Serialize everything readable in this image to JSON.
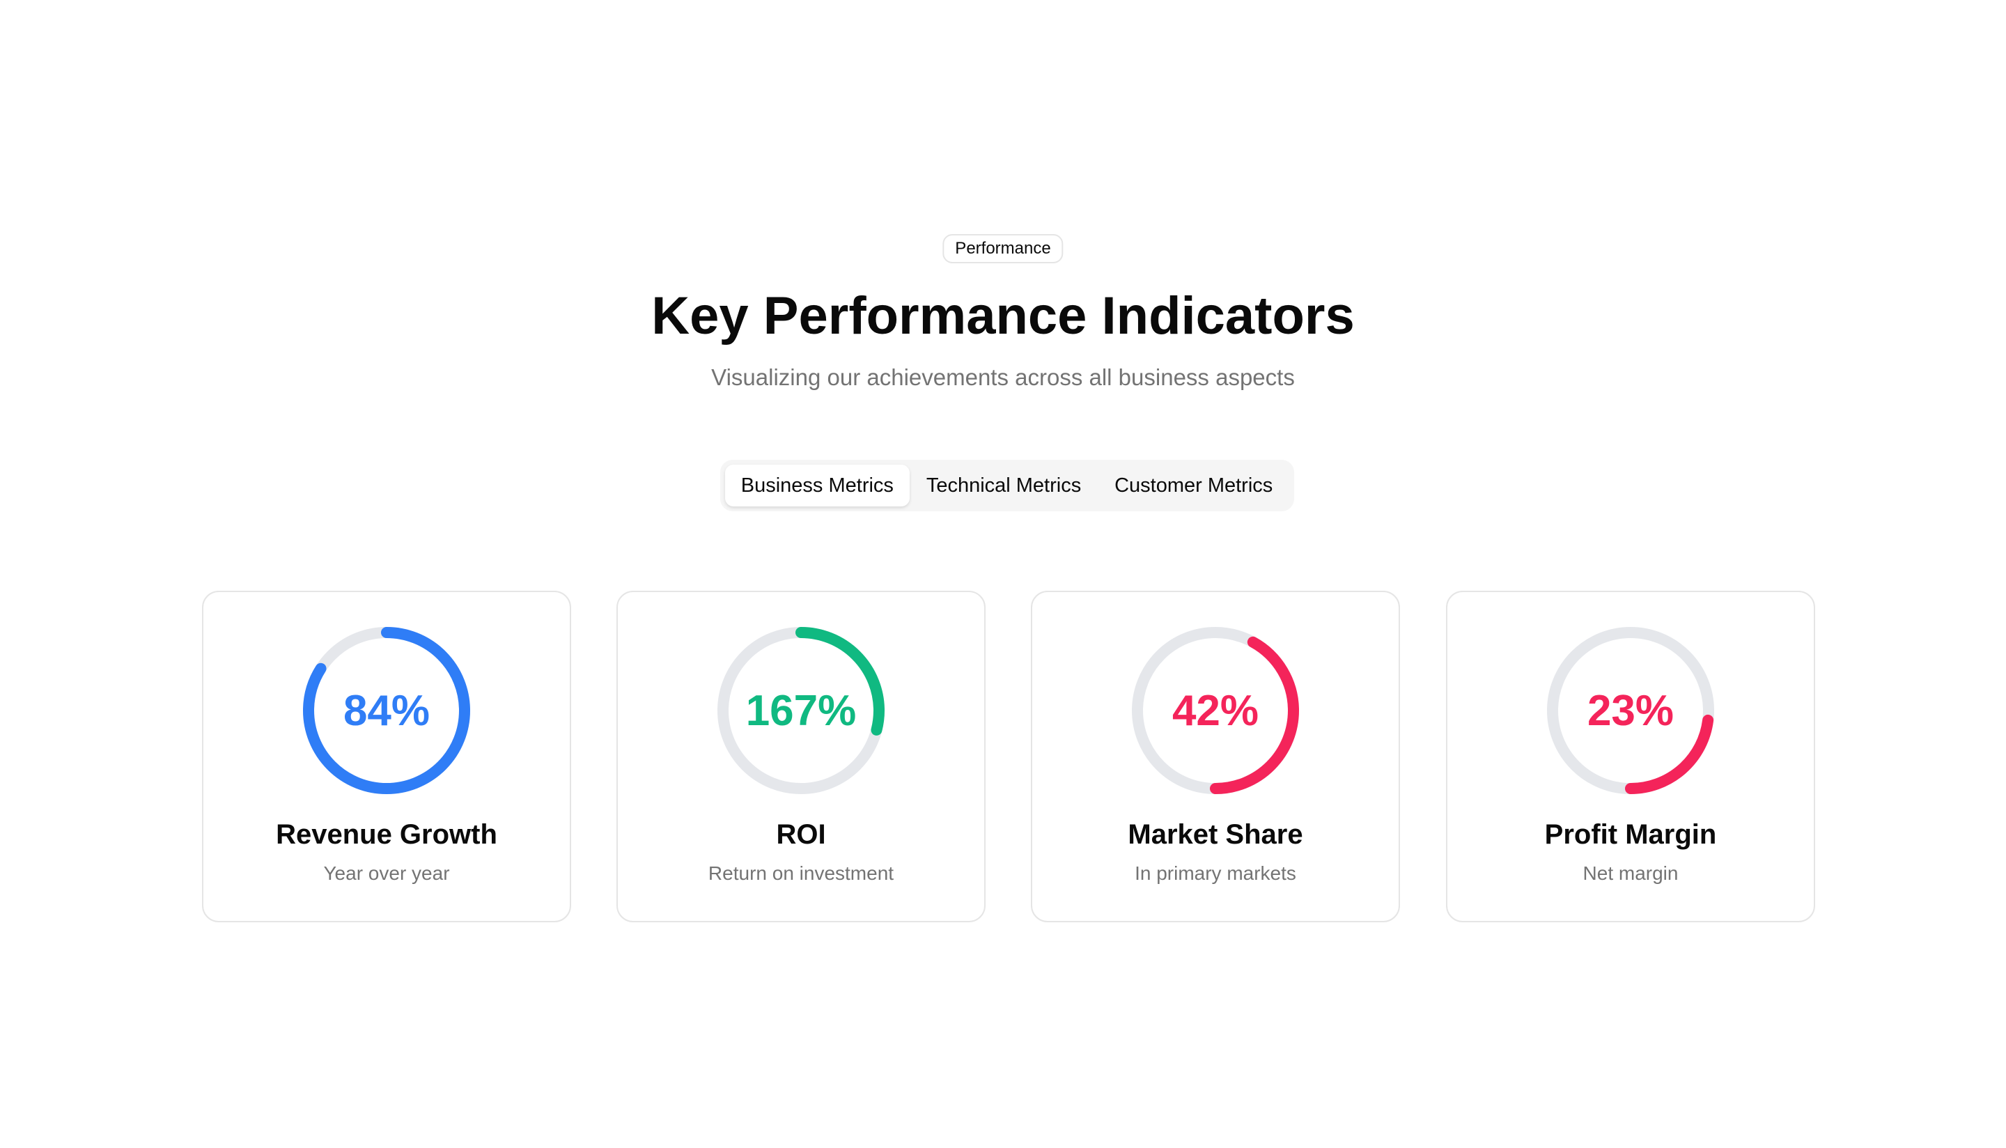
{
  "badge": "Performance",
  "title": "Key Performance Indicators",
  "subtitle": "Visualizing our achievements across all business aspects",
  "tabs": [
    {
      "label": "Business Metrics",
      "active": true
    },
    {
      "label": "Technical Metrics",
      "active": false
    },
    {
      "label": "Customer Metrics",
      "active": false
    }
  ],
  "metrics": [
    {
      "value_label": "84%",
      "progress": 0.84,
      "color": "#2f7df6",
      "title": "Revenue Growth",
      "description": "Year over year"
    },
    {
      "value_label": "167%",
      "progress": 0.29,
      "color": "#10b981",
      "title": "ROI",
      "description": "Return on investment"
    },
    {
      "value_label": "42%",
      "progress": 0.42,
      "color": "#f4245a",
      "title": "Market Share",
      "description": "In primary markets"
    },
    {
      "value_label": "23%",
      "progress": 0.23,
      "color": "#f4245a",
      "title": "Profit Margin",
      "description": "Net margin"
    }
  ],
  "colors": {
    "track": "#e5e7eb",
    "muted_text": "#737373",
    "border": "#e5e5e5"
  }
}
